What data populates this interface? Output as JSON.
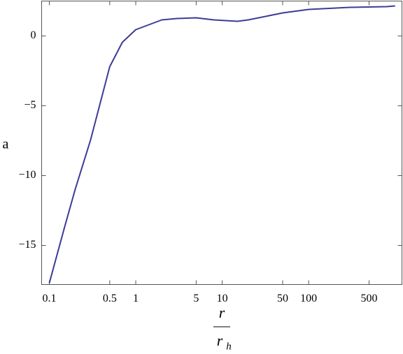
{
  "chart_data": {
    "type": "line",
    "x": [
      0.1,
      0.15,
      0.2,
      0.3,
      0.5,
      0.7,
      1,
      2,
      3,
      5,
      8,
      15,
      20,
      50,
      100,
      300,
      800,
      1000
    ],
    "series": [
      {
        "color": "#3c3c96",
        "values": [
          -17.7,
          -13.7,
          -10.95,
          -7.45,
          -2.2,
          -0.45,
          0.45,
          1.15,
          1.25,
          1.3,
          1.15,
          1.05,
          1.15,
          1.65,
          1.9,
          2.05,
          2.1,
          2.15
        ]
      }
    ],
    "xscale": "log",
    "xlim": [
      0.0815,
      1200
    ],
    "ylim": [
      -17.8,
      2.5
    ],
    "xticks": [
      0.1,
      0.5,
      1,
      5,
      10,
      50,
      100,
      500
    ],
    "yticks": [
      {
        "value": -15,
        "label": "−15"
      },
      {
        "value": -10,
        "label": "−10"
      },
      {
        "value": -5,
        "label": "−5"
      },
      0
    ],
    "ylabel": "a",
    "xlabel_numerator": "r",
    "xlabel_denominator": "r",
    "xlabel_denominator_subscript": "h"
  }
}
